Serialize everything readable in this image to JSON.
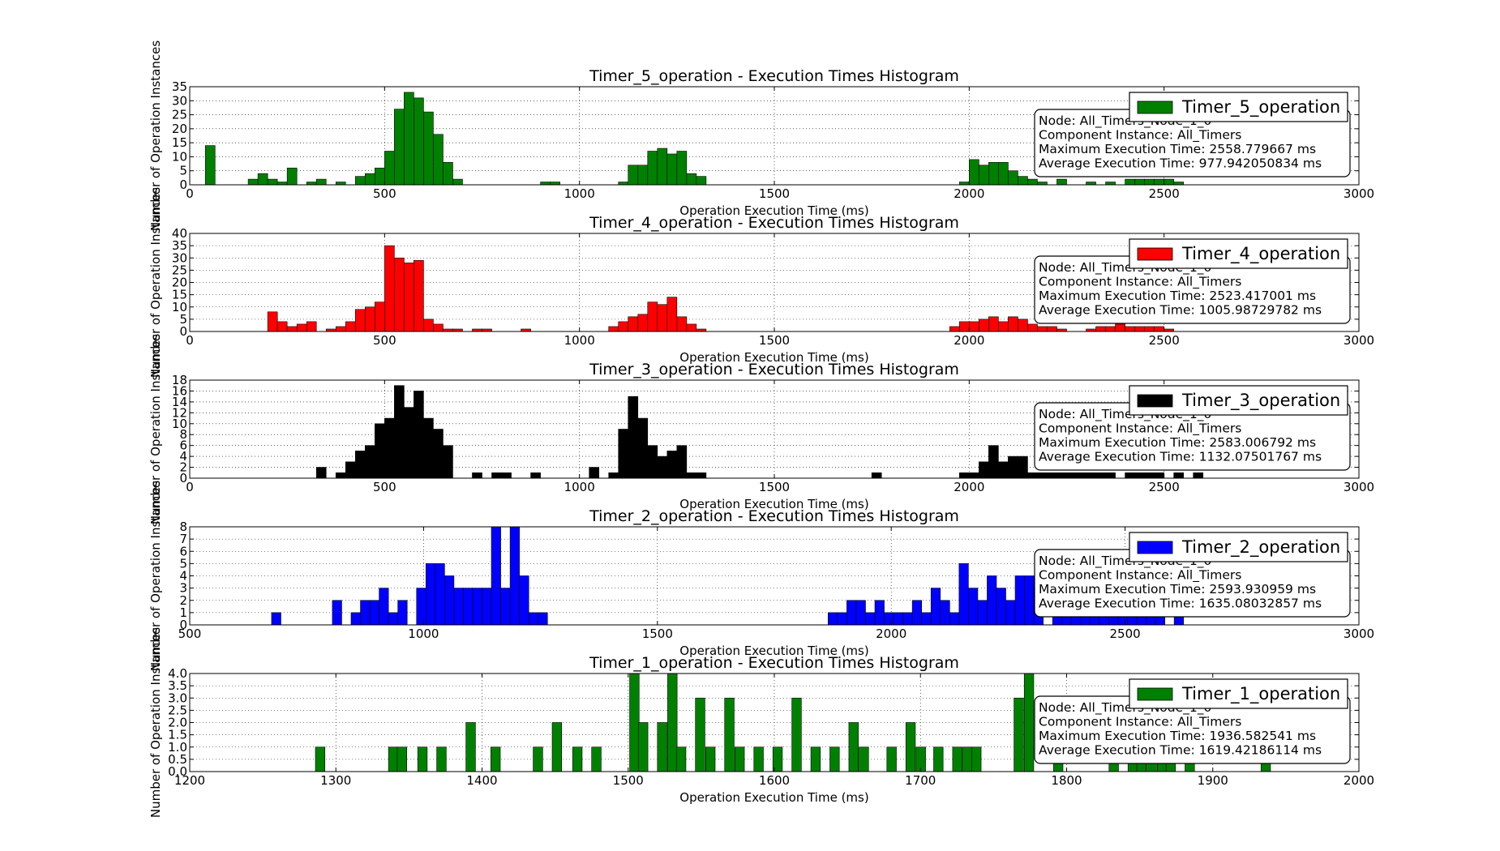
{
  "figure": {
    "background": "#ffffff"
  },
  "chart_data": [
    {
      "type": "bar",
      "title": "Timer_5_operation - Execution Times Histogram",
      "xlabel": "Operation Execution Time (ms)",
      "ylabel": "Number of Operation Instances",
      "xlim": [
        0,
        3000
      ],
      "ylim": [
        0,
        35
      ],
      "xticks": [
        0,
        500,
        1000,
        1500,
        2000,
        2500,
        3000
      ],
      "yticks": [
        0,
        5,
        10,
        15,
        20,
        25,
        30,
        35
      ],
      "grid": true,
      "color": "#008000",
      "bin_width": 25,
      "series": [
        {
          "name": "Timer_5_operation",
          "x": [
            40,
            150,
            175,
            200,
            225,
            250,
            300,
            325,
            375,
            425,
            450,
            475,
            500,
            525,
            550,
            575,
            600,
            625,
            650,
            675,
            900,
            925,
            1100,
            1125,
            1150,
            1175,
            1200,
            1225,
            1250,
            1275,
            1300,
            1975,
            2000,
            2025,
            2050,
            2075,
            2100,
            2125,
            2150,
            2175,
            2225,
            2300,
            2350,
            2400,
            2425,
            2450,
            2475,
            2500,
            2525
          ],
          "values": [
            14,
            2,
            4,
            2,
            1,
            6,
            1,
            2,
            1,
            3,
            4,
            6,
            12,
            27,
            33,
            31,
            26,
            18,
            8,
            2,
            1,
            1,
            1,
            7,
            7,
            12,
            13,
            11,
            12,
            4,
            3,
            1,
            9,
            7,
            8,
            8,
            5,
            3,
            2,
            1,
            2,
            1,
            1,
            2,
            2,
            2,
            2,
            2,
            1
          ]
        }
      ],
      "legend": {
        "label": "Timer_5_operation",
        "position": "top-right"
      },
      "info": [
        "Node: All_Timers_Node_1_0",
        "Component Instance: All_Timers",
        "Maximum Execution Time: 2558.779667 ms",
        "Average Execution Time: 977.942050834 ms"
      ]
    },
    {
      "type": "bar",
      "title": "Timer_4_operation - Execution Times Histogram",
      "xlabel": "Operation Execution Time (ms)",
      "ylabel": "Number of Operation Instances",
      "xlim": [
        0,
        3000
      ],
      "ylim": [
        0,
        40
      ],
      "xticks": [
        0,
        500,
        1000,
        1500,
        2000,
        2500,
        3000
      ],
      "yticks": [
        0,
        5,
        10,
        15,
        20,
        25,
        30,
        35,
        40
      ],
      "grid": true,
      "color": "#ff0000",
      "bin_width": 25,
      "series": [
        {
          "name": "Timer_4_operation",
          "x": [
            200,
            225,
            250,
            275,
            300,
            350,
            375,
            400,
            425,
            450,
            475,
            500,
            525,
            550,
            575,
            600,
            625,
            650,
            675,
            725,
            750,
            850,
            1075,
            1100,
            1125,
            1150,
            1175,
            1200,
            1225,
            1250,
            1275,
            1300,
            1950,
            1975,
            2000,
            2025,
            2050,
            2075,
            2100,
            2125,
            2150,
            2175,
            2200,
            2225,
            2300,
            2325,
            2350,
            2375,
            2400,
            2425,
            2450,
            2475,
            2500
          ],
          "values": [
            8,
            4,
            2,
            3,
            4,
            1,
            2,
            4,
            9,
            10,
            12,
            35,
            30,
            28,
            29,
            5,
            3,
            1,
            1,
            1,
            1,
            1,
            2,
            4,
            6,
            7,
            12,
            11,
            14,
            6,
            3,
            1,
            2,
            4,
            4,
            5,
            6,
            4,
            6,
            5,
            3,
            2,
            2,
            1,
            1,
            2,
            2,
            3,
            2,
            2,
            2,
            2,
            1
          ]
        }
      ],
      "legend": {
        "label": "Timer_4_operation",
        "position": "top-right"
      },
      "info": [
        "Node: All_Timers_Node_1_0",
        "Component Instance: All_Timers",
        "Maximum Execution Time: 2523.417001 ms",
        "Average Execution Time: 1005.98729782 ms"
      ]
    },
    {
      "type": "bar",
      "title": "Timer_3_operation - Execution Times Histogram",
      "xlabel": "Operation Execution Time (ms)",
      "ylabel": "Number of Operation Instances",
      "xlim": [
        0,
        3000
      ],
      "ylim": [
        0,
        18
      ],
      "xticks": [
        0,
        500,
        1000,
        1500,
        2000,
        2500,
        3000
      ],
      "yticks": [
        0,
        2,
        4,
        6,
        8,
        10,
        12,
        14,
        16,
        18
      ],
      "grid": true,
      "color": "#000000",
      "bin_width": 25,
      "series": [
        {
          "name": "Timer_3_operation",
          "x": [
            325,
            375,
            400,
            425,
            450,
            475,
            500,
            525,
            550,
            575,
            600,
            625,
            650,
            725,
            775,
            800,
            875,
            1025,
            1075,
            1100,
            1125,
            1150,
            1175,
            1200,
            1225,
            1250,
            1275,
            1300,
            1750,
            1975,
            2000,
            2025,
            2050,
            2075,
            2100,
            2125,
            2150,
            2175,
            2200,
            2225,
            2250,
            2275,
            2300,
            2325,
            2350,
            2400,
            2425,
            2450,
            2475,
            2525,
            2575
          ],
          "values": [
            2,
            1,
            3,
            5,
            6,
            10,
            11,
            17,
            13,
            16,
            11,
            9,
            6,
            1,
            1,
            1,
            1,
            2,
            1,
            9,
            15,
            11,
            6,
            4,
            5,
            6,
            1,
            1,
            1,
            1,
            1,
            3,
            6,
            3,
            4,
            4,
            1,
            1,
            1,
            1,
            1,
            1,
            1,
            1,
            1,
            1,
            1,
            1,
            1,
            1,
            1
          ]
        }
      ],
      "legend": {
        "label": "Timer_3_operation",
        "position": "top-right"
      },
      "info": [
        "Node: All_Timers_Node_1_0",
        "Component Instance: All_Timers",
        "Maximum Execution Time: 2583.006792 ms",
        "Average Execution Time: 1132.07501767 ms"
      ]
    },
    {
      "type": "bar",
      "title": "Timer_2_operation - Execution Times Histogram",
      "xlabel": "Operation Execution Time (ms)",
      "ylabel": "Number of Operation Instances",
      "xlim": [
        500,
        3000
      ],
      "ylim": [
        0,
        8
      ],
      "xticks": [
        500,
        1000,
        1500,
        2000,
        2500,
        3000
      ],
      "yticks": [
        0,
        1,
        2,
        3,
        4,
        5,
        6,
        7,
        8
      ],
      "grid": true,
      "color": "#0000ff",
      "bin_width": 20,
      "series": [
        {
          "name": "Timer_2_operation",
          "x": [
            675,
            805,
            845,
            865,
            885,
            905,
            925,
            945,
            985,
            1005,
            1025,
            1045,
            1065,
            1085,
            1105,
            1125,
            1145,
            1165,
            1185,
            1205,
            1225,
            1245,
            1865,
            1885,
            1905,
            1925,
            1945,
            1965,
            1985,
            2005,
            2025,
            2045,
            2065,
            2085,
            2105,
            2125,
            2145,
            2165,
            2185,
            2205,
            2225,
            2245,
            2265,
            2285,
            2305,
            2345,
            2365,
            2385,
            2405,
            2425,
            2445,
            2465,
            2485,
            2505,
            2525,
            2545,
            2565,
            2605
          ],
          "values": [
            1,
            2,
            1,
            2,
            2,
            3,
            1,
            2,
            3,
            5,
            5,
            4,
            3,
            3,
            3,
            3,
            8,
            3,
            8,
            4,
            1,
            1,
            1,
            1,
            2,
            2,
            1,
            2,
            1,
            1,
            1,
            2,
            1,
            3,
            2,
            1,
            5,
            3,
            2,
            4,
            3,
            2,
            4,
            4,
            3,
            1,
            1,
            1,
            1,
            1,
            1,
            1,
            1,
            1,
            1,
            1,
            1,
            1
          ]
        }
      ],
      "legend": {
        "label": "Timer_2_operation",
        "position": "top-right"
      },
      "info": [
        "Node: All_Timers_Node_1_0",
        "Component Instance: All_Timers",
        "Maximum Execution Time: 2593.930959 ms",
        "Average Execution Time: 1635.08032857 ms"
      ]
    },
    {
      "type": "bar",
      "title": "Timer_1_operation - Execution Times Histogram",
      "xlabel": "Operation Execution Time (ms)",
      "ylabel": "Number of Operation Instances",
      "xlim": [
        1200,
        2000
      ],
      "ylim": [
        0,
        4
      ],
      "xticks": [
        1200,
        1300,
        1400,
        1500,
        1600,
        1700,
        1800,
        1900,
        2000
      ],
      "yticks": [
        0,
        0.5,
        1,
        1.5,
        2,
        2.5,
        3,
        3.5,
        4
      ],
      "ytick_labels": [
        "0.0",
        "0.5",
        "1.0",
        "1.5",
        "2.0",
        "2.5",
        "3.0",
        "3.5",
        "4.0"
      ],
      "grid": true,
      "color": "#008000",
      "bin_width": 6.5,
      "series": [
        {
          "name": "Timer_1_operation",
          "x": [
            1286,
            1336,
            1342,
            1356,
            1369,
            1389,
            1406,
            1435,
            1448,
            1462,
            1475,
            1501,
            1507,
            1520,
            1527,
            1533,
            1546,
            1553,
            1566,
            1573,
            1586,
            1599,
            1612,
            1625,
            1638,
            1651,
            1658,
            1677,
            1690,
            1697,
            1709,
            1722,
            1729,
            1735,
            1764,
            1771,
            1791,
            1829,
            1842,
            1848,
            1855,
            1862,
            1868,
            1881,
            1933
          ],
          "values": [
            1,
            1,
            1,
            1,
            1,
            2,
            1,
            1,
            2,
            1,
            1,
            4,
            2,
            2,
            4,
            1,
            3,
            1,
            3,
            1,
            1,
            1,
            3,
            1,
            1,
            2,
            1,
            1,
            2,
            1,
            1,
            1,
            1,
            1,
            3,
            4,
            1,
            1,
            1,
            1,
            1,
            1,
            1,
            1,
            1
          ]
        }
      ],
      "legend": {
        "label": "Timer_1_operation",
        "position": "top-right"
      },
      "info": [
        "Node: All_Timers_Node_1_0",
        "Component Instance: All_Timers",
        "Maximum Execution Time: 1936.582541 ms",
        "Average Execution Time: 1619.42186114 ms"
      ]
    }
  ]
}
